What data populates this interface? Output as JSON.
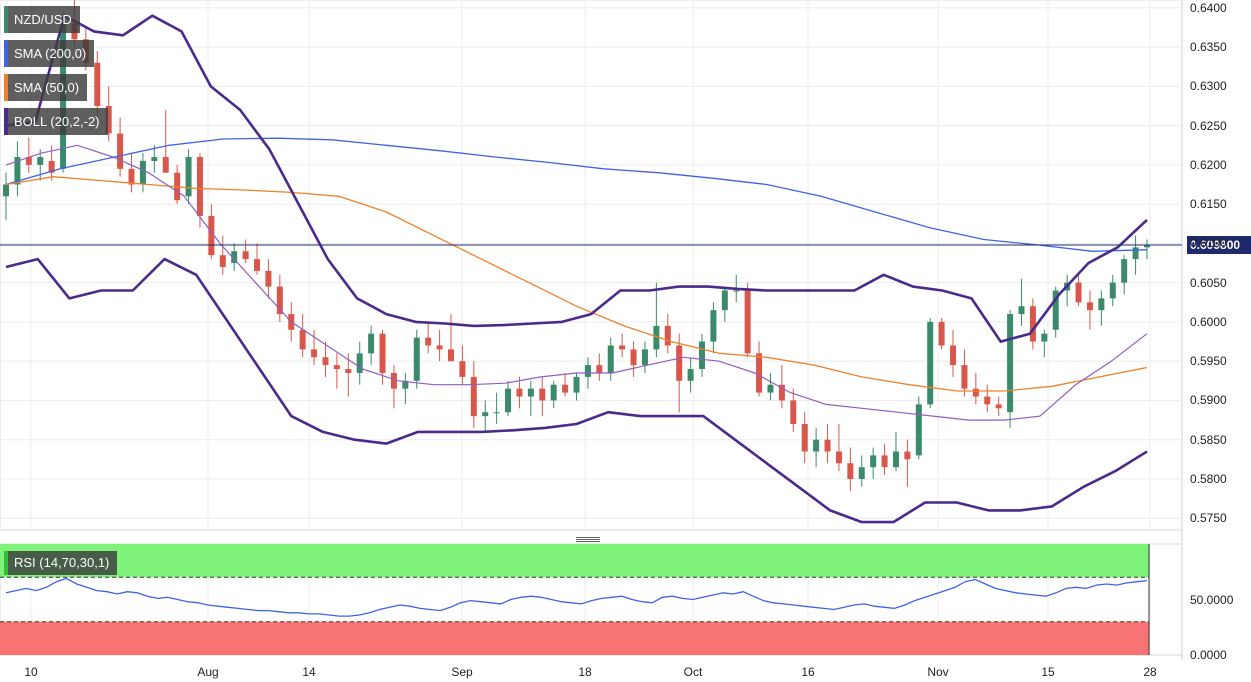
{
  "legends": {
    "symbol": "NZD/USD",
    "sma200": "SMA (200,0)",
    "sma50": "SMA (50,0)",
    "boll": "BOLL (20,2,-2)",
    "rsi": "RSI (14,70,30,1)"
  },
  "colors": {
    "up": "#3a8a6b",
    "down": "#d9574a",
    "sma200": "#3f63e6",
    "sma50": "#f0812c",
    "boll_band": "#4a2a8a",
    "boll_mid": "#8e5fc0",
    "rsi_line": "#3f63e6",
    "rsi_overbought": "#7ff27a",
    "rsi_oversold": "#f87474",
    "current_line": "#1e2a6b"
  },
  "current_price": "0.609800",
  "chart_data": [
    {
      "type": "candlestick",
      "title": "NZD/USD",
      "ylim": [
        0.5735,
        0.641
      ],
      "y_ticks": [
        "0.6400",
        "0.6350",
        "0.6300",
        "0.6250",
        "0.6200",
        "0.6150",
        "0.6100",
        "0.6050",
        "0.6000",
        "0.5950",
        "0.5900",
        "0.5850",
        "0.5800",
        "0.5750"
      ],
      "x_ticks": [
        "10",
        "Aug",
        "14",
        "Sep",
        "18",
        "Oct",
        "16",
        "Nov",
        "15",
        "28"
      ],
      "grid": true,
      "candles": [
        [
          0.616,
          0.619,
          0.613,
          0.6175
        ],
        [
          0.6175,
          0.623,
          0.616,
          0.621
        ],
        [
          0.621,
          0.6235,
          0.619,
          0.62
        ],
        [
          0.62,
          0.622,
          0.618,
          0.621
        ],
        [
          0.6205,
          0.6225,
          0.618,
          0.619
        ],
        [
          0.6195,
          0.6395,
          0.619,
          0.638
        ],
        [
          0.638,
          0.642,
          0.635,
          0.636
        ],
        [
          0.636,
          0.6375,
          0.632,
          0.633
        ],
        [
          0.633,
          0.6345,
          0.626,
          0.6275
        ],
        [
          0.6275,
          0.63,
          0.623,
          0.624
        ],
        [
          0.624,
          0.626,
          0.6185,
          0.6195
        ],
        [
          0.6195,
          0.6215,
          0.6165,
          0.6175
        ],
        [
          0.6175,
          0.6215,
          0.6165,
          0.6205
        ],
        [
          0.6205,
          0.6225,
          0.619,
          0.621
        ],
        [
          0.621,
          0.627,
          0.6195,
          0.619
        ],
        [
          0.619,
          0.62,
          0.615,
          0.6155
        ],
        [
          0.616,
          0.622,
          0.615,
          0.621
        ],
        [
          0.621,
          0.6215,
          0.612,
          0.6135
        ],
        [
          0.6135,
          0.615,
          0.608,
          0.6085
        ],
        [
          0.6085,
          0.611,
          0.606,
          0.607
        ],
        [
          0.6075,
          0.61,
          0.6065,
          0.609
        ],
        [
          0.609,
          0.6105,
          0.6075,
          0.608
        ],
        [
          0.608,
          0.61,
          0.606,
          0.6065
        ],
        [
          0.6065,
          0.608,
          0.603,
          0.6045
        ],
        [
          0.6045,
          0.606,
          0.6,
          0.601
        ],
        [
          0.601,
          0.6025,
          0.5975,
          0.599
        ],
        [
          0.599,
          0.601,
          0.5955,
          0.5965
        ],
        [
          0.5965,
          0.599,
          0.5945,
          0.5955
        ],
        [
          0.5955,
          0.5975,
          0.593,
          0.5945
        ],
        [
          0.5945,
          0.596,
          0.5915,
          0.594
        ],
        [
          0.594,
          0.596,
          0.5905,
          0.5935
        ],
        [
          0.5935,
          0.5975,
          0.592,
          0.596
        ],
        [
          0.596,
          0.5995,
          0.5945,
          0.5985
        ],
        [
          0.5985,
          0.599,
          0.592,
          0.5935
        ],
        [
          0.5935,
          0.5945,
          0.589,
          0.5915
        ],
        [
          0.5915,
          0.5935,
          0.5895,
          0.5925
        ],
        [
          0.5925,
          0.599,
          0.5915,
          0.598
        ],
        [
          0.598,
          0.6,
          0.596,
          0.597
        ],
        [
          0.597,
          0.599,
          0.595,
          0.5965
        ],
        [
          0.5965,
          0.601,
          0.595,
          0.595
        ],
        [
          0.595,
          0.597,
          0.592,
          0.593
        ],
        [
          0.593,
          0.595,
          0.5865,
          0.588
        ],
        [
          0.588,
          0.59,
          0.586,
          0.5885
        ],
        [
          0.5885,
          0.591,
          0.587,
          0.5885
        ],
        [
          0.5885,
          0.5925,
          0.588,
          0.5915
        ],
        [
          0.5915,
          0.593,
          0.589,
          0.5905
        ],
        [
          0.5905,
          0.5925,
          0.588,
          0.5915
        ],
        [
          0.5915,
          0.593,
          0.588,
          0.59
        ],
        [
          0.59,
          0.5925,
          0.589,
          0.592
        ],
        [
          0.592,
          0.5935,
          0.5905,
          0.591
        ],
        [
          0.591,
          0.5935,
          0.59,
          0.593
        ],
        [
          0.593,
          0.5955,
          0.5915,
          0.5945
        ],
        [
          0.5945,
          0.596,
          0.5925,
          0.5935
        ],
        [
          0.5935,
          0.598,
          0.5925,
          0.597
        ],
        [
          0.597,
          0.5985,
          0.5955,
          0.5965
        ],
        [
          0.5965,
          0.5975,
          0.593,
          0.5945
        ],
        [
          0.5945,
          0.5975,
          0.5935,
          0.5965
        ],
        [
          0.5965,
          0.605,
          0.5955,
          0.5995
        ],
        [
          0.5995,
          0.601,
          0.596,
          0.597
        ],
        [
          0.597,
          0.5985,
          0.5885,
          0.5925
        ],
        [
          0.5925,
          0.5955,
          0.591,
          0.594
        ],
        [
          0.594,
          0.5985,
          0.593,
          0.5975
        ],
        [
          0.5975,
          0.6025,
          0.596,
          0.6015
        ],
        [
          0.6015,
          0.6045,
          0.6,
          0.604
        ],
        [
          0.604,
          0.606,
          0.6025,
          0.604
        ],
        [
          0.604,
          0.605,
          0.5955,
          0.596
        ],
        [
          0.596,
          0.5975,
          0.5905,
          0.591
        ],
        [
          0.591,
          0.5935,
          0.59,
          0.592
        ],
        [
          0.592,
          0.5945,
          0.589,
          0.59
        ],
        [
          0.59,
          0.5915,
          0.586,
          0.587
        ],
        [
          0.587,
          0.5885,
          0.582,
          0.5835
        ],
        [
          0.5835,
          0.5865,
          0.5815,
          0.585
        ],
        [
          0.585,
          0.587,
          0.582,
          0.5835
        ],
        [
          0.5835,
          0.587,
          0.581,
          0.582
        ],
        [
          0.582,
          0.584,
          0.5785,
          0.58
        ],
        [
          0.58,
          0.583,
          0.579,
          0.5815
        ],
        [
          0.5815,
          0.584,
          0.58,
          0.583
        ],
        [
          0.583,
          0.5845,
          0.5805,
          0.5815
        ],
        [
          0.5815,
          0.586,
          0.581,
          0.5835
        ],
        [
          0.5835,
          0.585,
          0.579,
          0.5825
        ],
        [
          0.583,
          0.5905,
          0.5825,
          0.5895
        ],
        [
          0.5895,
          0.6005,
          0.589,
          0.6
        ],
        [
          0.6,
          0.6005,
          0.5965,
          0.597
        ],
        [
          0.597,
          0.599,
          0.593,
          0.5945
        ],
        [
          0.5945,
          0.5965,
          0.5905,
          0.5915
        ],
        [
          0.5915,
          0.5935,
          0.5895,
          0.5905
        ],
        [
          0.5905,
          0.592,
          0.5885,
          0.5895
        ],
        [
          0.5895,
          0.5905,
          0.588,
          0.589
        ],
        [
          0.5885,
          0.6015,
          0.5865,
          0.601
        ],
        [
          0.601,
          0.6055,
          0.5995,
          0.602
        ],
        [
          0.602,
          0.603,
          0.5965,
          0.5975
        ],
        [
          0.5975,
          0.599,
          0.5955,
          0.5985
        ],
        [
          0.599,
          0.6045,
          0.598,
          0.604
        ],
        [
          0.604,
          0.606,
          0.602,
          0.605
        ],
        [
          0.605,
          0.606,
          0.602,
          0.6025
        ],
        [
          0.6025,
          0.604,
          0.599,
          0.6015
        ],
        [
          0.6015,
          0.604,
          0.5995,
          0.603
        ],
        [
          0.603,
          0.606,
          0.602,
          0.605
        ],
        [
          0.605,
          0.6085,
          0.6035,
          0.608
        ],
        [
          0.608,
          0.611,
          0.606,
          0.6095
        ],
        [
          0.6095,
          0.6105,
          0.608,
          0.6098
        ]
      ],
      "sma200": [
        0.6175,
        0.6195,
        0.621,
        0.6225,
        0.6233,
        0.6234,
        0.6232,
        0.6225,
        0.6218,
        0.621,
        0.6203,
        0.6195,
        0.619,
        0.6183,
        0.6175,
        0.616,
        0.614,
        0.612,
        0.6105,
        0.6098,
        0.609,
        0.6092
      ],
      "sma50": [
        0.6175,
        0.6185,
        0.618,
        0.6175,
        0.617,
        0.6168,
        0.6165,
        0.616,
        0.614,
        0.611,
        0.608,
        0.605,
        0.602,
        0.5995,
        0.5975,
        0.596,
        0.5955,
        0.5945,
        0.593,
        0.592,
        0.5912,
        0.5912,
        0.5918,
        0.593,
        0.5942
      ],
      "boll_upper": [
        0.625,
        0.6255,
        0.639,
        0.637,
        0.6365,
        0.639,
        0.637,
        0.63,
        0.627,
        0.622,
        0.615,
        0.608,
        0.603,
        0.601,
        0.6,
        0.5998,
        0.5995,
        0.5996,
        0.5998,
        0.6,
        0.601,
        0.604,
        0.604,
        0.6045,
        0.6045,
        0.6042,
        0.604,
        0.604,
        0.604,
        0.604,
        0.606,
        0.6045,
        0.604,
        0.603,
        0.5975,
        0.5985,
        0.6035,
        0.6075,
        0.6095,
        0.613
      ],
      "boll_mid": [
        0.62,
        0.6215,
        0.6225,
        0.621,
        0.619,
        0.616,
        0.61,
        0.605,
        0.6,
        0.597,
        0.594,
        0.5925,
        0.592,
        0.592,
        0.5922,
        0.593,
        0.5935,
        0.5935,
        0.5945,
        0.5955,
        0.595,
        0.5935,
        0.591,
        0.5895,
        0.589,
        0.5885,
        0.588,
        0.5875,
        0.5875,
        0.588,
        0.592,
        0.595,
        0.5985
      ],
      "boll_lower": [
        0.607,
        0.608,
        0.603,
        0.604,
        0.604,
        0.608,
        0.606,
        0.6,
        0.594,
        0.588,
        0.586,
        0.585,
        0.5845,
        0.586,
        0.586,
        0.586,
        0.5862,
        0.5865,
        0.587,
        0.5885,
        0.588,
        0.588,
        0.588,
        0.585,
        0.582,
        0.579,
        0.576,
        0.5745,
        0.5745,
        0.577,
        0.577,
        0.576,
        0.576,
        0.5765,
        0.579,
        0.581,
        0.5835
      ]
    },
    {
      "type": "line",
      "title": "RSI (14,70,30,1)",
      "ylim": [
        0,
        100
      ],
      "y_ticks": [
        "50.0000",
        "0.0000"
      ],
      "overbought": 70,
      "oversold": 30,
      "values": [
        56,
        58,
        60,
        58,
        61,
        66,
        69,
        64,
        61,
        58,
        57,
        55,
        57,
        56,
        53,
        51,
        52,
        50,
        48,
        47,
        45,
        44,
        43,
        42,
        41,
        40,
        40,
        39,
        38,
        38,
        37,
        37,
        36,
        35,
        35,
        36,
        38,
        41,
        43,
        45,
        44,
        42,
        41,
        40,
        43,
        47,
        49,
        48,
        47,
        46,
        50,
        52,
        53,
        52,
        50,
        48,
        47,
        46,
        49,
        51,
        52,
        53,
        50,
        48,
        47,
        52,
        53,
        51,
        50,
        52,
        54,
        56,
        55,
        57,
        53,
        49,
        47,
        46,
        45,
        44,
        43,
        42,
        41,
        43,
        45,
        46,
        44,
        43,
        42,
        45,
        49,
        52,
        55,
        58,
        61,
        66,
        68,
        64,
        60,
        58,
        56,
        55,
        54,
        53,
        56,
        60,
        61,
        60,
        63,
        64,
        63,
        65,
        66,
        67
      ]
    }
  ]
}
